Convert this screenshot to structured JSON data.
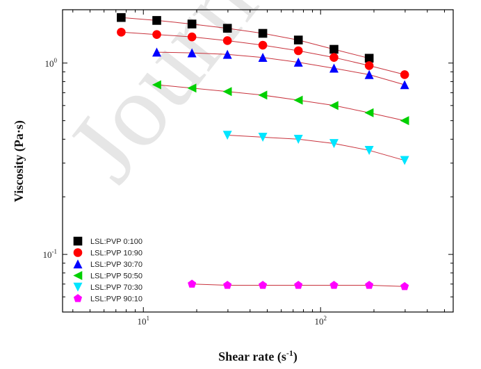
{
  "watermark": "Journal",
  "chart_data": {
    "type": "scatter",
    "xlabel": "Shear rate (s",
    "xlabel_sup": "-1",
    "xlabel_tail": ")",
    "ylabel": "Viscosity (Pa·s)",
    "xscale": "log",
    "yscale": "log",
    "xlim": [
      3.5,
      560
    ],
    "ylim": [
      0.05,
      1.9
    ],
    "grid": false,
    "legend_position": "bottom-left",
    "xticks": [
      {
        "value": 10,
        "base": "10",
        "exp": "1"
      },
      {
        "value": 100,
        "base": "10",
        "exp": "2"
      }
    ],
    "yticks": [
      {
        "value": 0.1,
        "base": "10",
        "exp": "-1"
      },
      {
        "value": 1,
        "base": "10",
        "exp": "0"
      }
    ],
    "fit_color": "#c8323c",
    "series": [
      {
        "name": "LSL:PVP 0:100",
        "marker": "square",
        "color": "#000000",
        "x": [
          7.5,
          11.9,
          18.8,
          29.8,
          47.2,
          74.9,
          119,
          188
        ],
        "y": [
          1.73,
          1.67,
          1.6,
          1.52,
          1.43,
          1.32,
          1.18,
          1.06
        ]
      },
      {
        "name": "LSL:PVP 10:90",
        "marker": "circle",
        "color": "#ff0000",
        "x": [
          7.5,
          11.9,
          18.8,
          29.8,
          47.2,
          74.9,
          119,
          188,
          298
        ],
        "y": [
          1.45,
          1.41,
          1.37,
          1.31,
          1.24,
          1.16,
          1.07,
          0.97,
          0.87
        ]
      },
      {
        "name": "LSL:PVP 30:70",
        "marker": "triangle-up",
        "color": "#0000ff",
        "x": [
          11.9,
          18.8,
          29.8,
          47.2,
          74.9,
          119,
          188,
          298
        ],
        "y": [
          1.14,
          1.13,
          1.11,
          1.07,
          1.01,
          0.94,
          0.87,
          0.77
        ]
      },
      {
        "name": "LSL:PVP 50:50",
        "marker": "triangle-left",
        "color": "#00d000",
        "x": [
          11.9,
          18.8,
          29.8,
          47.2,
          74.9,
          119,
          188,
          298
        ],
        "y": [
          0.77,
          0.74,
          0.71,
          0.68,
          0.64,
          0.6,
          0.55,
          0.5
        ]
      },
      {
        "name": "LSL:PVP 70:30",
        "marker": "triangle-down",
        "color": "#00e5ff",
        "x": [
          29.8,
          47.2,
          74.9,
          119,
          188,
          298
        ],
        "y": [
          0.42,
          0.41,
          0.4,
          0.38,
          0.35,
          0.31
        ]
      },
      {
        "name": "LSL:PVP 90:10",
        "marker": "pentagon",
        "color": "#ff00ff",
        "x": [
          18.8,
          29.8,
          47.2,
          74.9,
          119,
          188,
          298
        ],
        "y": [
          0.07,
          0.069,
          0.069,
          0.069,
          0.069,
          0.069,
          0.068
        ]
      }
    ]
  }
}
